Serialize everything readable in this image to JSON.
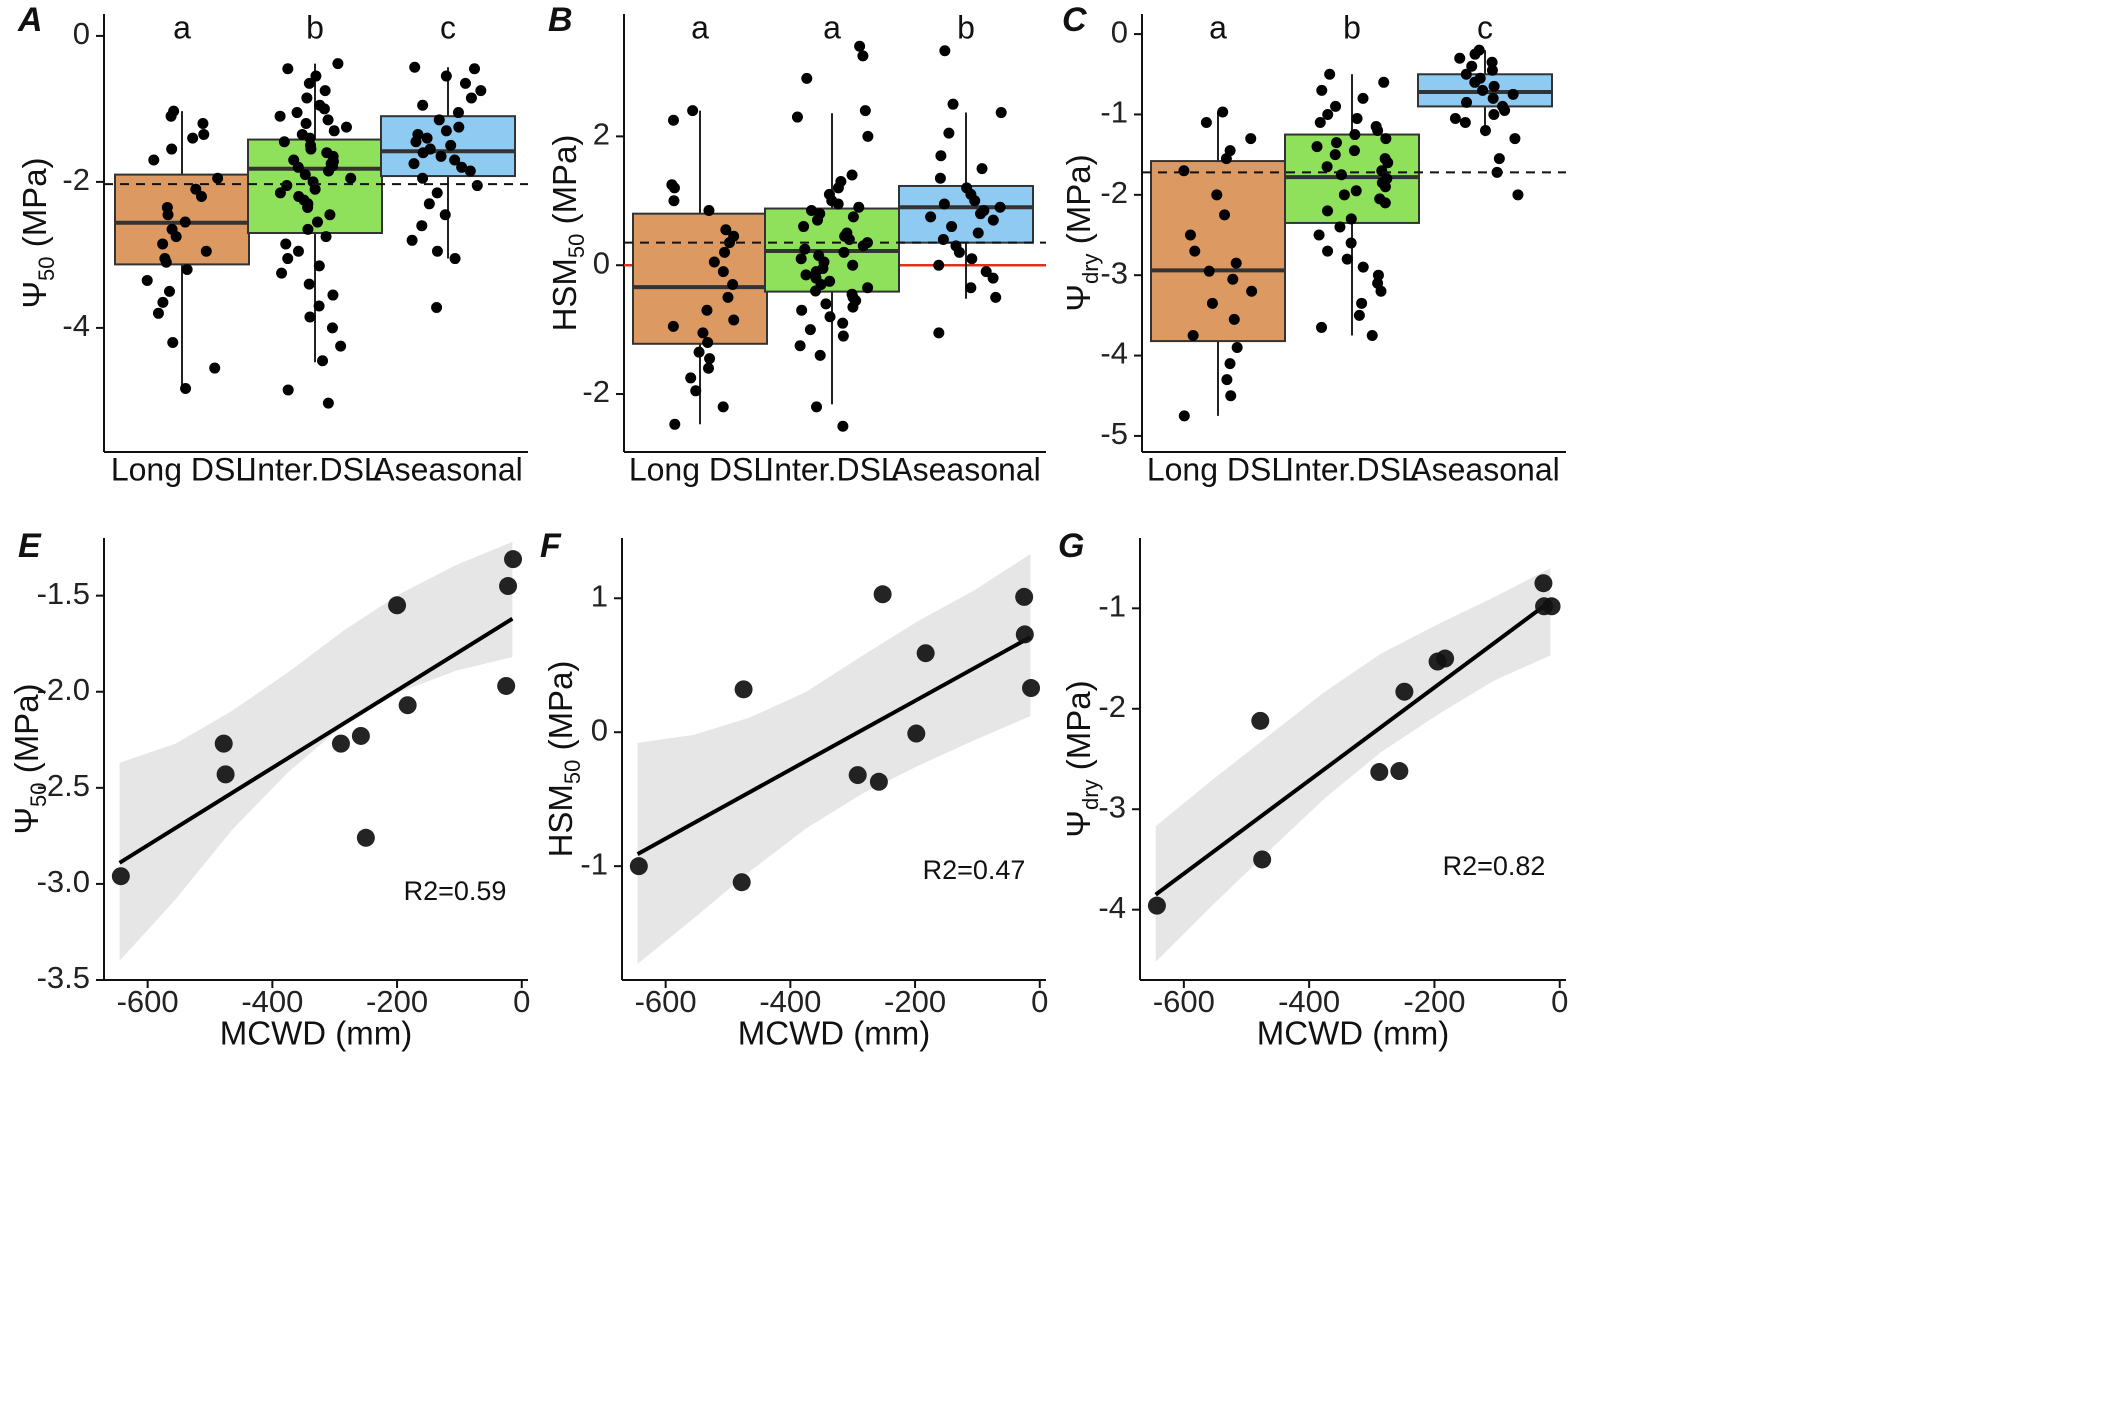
{
  "figure": {
    "categories": [
      "Long DSL",
      "Inter.DSL",
      "Aseasonal"
    ],
    "colors": {
      "Long DSL": "#dc9a62",
      "Inter.DSL": "#8fe05a",
      "Aseasonal": "#8ecaf2",
      "zero_line": "#e0301e",
      "ci_band": "#e6e6e6"
    }
  },
  "chart_data": [
    {
      "panel": "A",
      "type": "box",
      "ylabel_main": "Ψ",
      "ylabel_sub": "50",
      "ylabel_unit": " (MPa)",
      "ylim": [
        -5.7,
        0.3
      ],
      "yticks": [
        0,
        -2,
        -4
      ],
      "ytick_labels": [
        "0",
        "-2",
        "-4"
      ],
      "reference_line": -2.03,
      "zero_line": null,
      "groups": [
        {
          "category": "Long DSL",
          "letter": "a",
          "q1": -3.13,
          "median": -2.56,
          "q3": -1.9,
          "whisker_low": -4.83,
          "whisker_high": -1.03,
          "points": [
            -1.03,
            -1.1,
            -1.2,
            -1.35,
            -1.4,
            -1.55,
            -1.7,
            -1.95,
            -2.1,
            -2.2,
            -2.35,
            -2.45,
            -2.55,
            -2.65,
            -2.75,
            -2.85,
            -2.95,
            -3.05,
            -3.1,
            -3.2,
            -3.35,
            -3.5,
            -3.65,
            -3.8,
            -4.2,
            -4.55,
            -4.83
          ]
        },
        {
          "category": "Inter.DSL",
          "letter": "b",
          "q1": -2.7,
          "median": -1.82,
          "q3": -1.42,
          "whisker_low": -4.47,
          "whisker_high": -0.38,
          "points": [
            -0.38,
            -0.45,
            -0.55,
            -0.65,
            -0.75,
            -0.85,
            -0.95,
            -1.0,
            -1.05,
            -1.1,
            -1.15,
            -1.2,
            -1.25,
            -1.3,
            -1.35,
            -1.4,
            -1.45,
            -1.5,
            -1.55,
            -1.6,
            -1.65,
            -1.7,
            -1.72,
            -1.75,
            -1.78,
            -1.8,
            -1.85,
            -1.9,
            -1.95,
            -2.0,
            -2.05,
            -2.1,
            -2.15,
            -2.2,
            -2.25,
            -2.3,
            -2.35,
            -2.45,
            -2.55,
            -2.65,
            -2.75,
            -2.85,
            -2.95,
            -3.05,
            -3.15,
            -3.25,
            -3.4,
            -3.55,
            -3.7,
            -3.85,
            -4.0,
            -4.25,
            -4.45,
            -4.85,
            -5.03
          ]
        },
        {
          "category": "Aseasonal",
          "letter": "c",
          "q1": -1.92,
          "median": -1.58,
          "q3": -1.1,
          "whisker_low": -3.05,
          "whisker_high": -0.43,
          "points": [
            -0.43,
            -0.45,
            -0.55,
            -0.65,
            -0.75,
            -0.85,
            -0.95,
            -1.05,
            -1.15,
            -1.25,
            -1.3,
            -1.35,
            -1.4,
            -1.45,
            -1.5,
            -1.55,
            -1.6,
            -1.65,
            -1.7,
            -1.75,
            -1.8,
            -1.85,
            -1.95,
            -2.05,
            -2.15,
            -2.3,
            -2.45,
            -2.6,
            -2.8,
            -2.95,
            -3.05,
            -3.72
          ]
        }
      ]
    },
    {
      "panel": "B",
      "type": "box",
      "ylabel_main": "HSM",
      "ylabel_sub": "50",
      "ylabel_unit": " (MPa)",
      "ylim": [
        -2.9,
        3.9
      ],
      "yticks": [
        2,
        0,
        -2
      ],
      "ytick_labels": [
        "2",
        "0",
        "-2"
      ],
      "reference_line": 0.35,
      "zero_line": 0,
      "groups": [
        {
          "category": "Long DSL",
          "letter": "a",
          "q1": -1.22,
          "median": -0.34,
          "q3": 0.8,
          "whisker_low": -2.47,
          "whisker_high": 2.4,
          "points": [
            2.4,
            2.25,
            1.25,
            1.2,
            1.0,
            0.85,
            0.55,
            0.45,
            0.35,
            0.2,
            0.05,
            -0.1,
            -0.3,
            -0.5,
            -0.7,
            -0.85,
            -0.95,
            -1.05,
            -1.2,
            -1.35,
            -1.45,
            -1.6,
            -1.75,
            -1.95,
            -2.2,
            -2.47
          ]
        },
        {
          "category": "Inter.DSL",
          "letter": "a",
          "q1": -0.41,
          "median": 0.22,
          "q3": 0.88,
          "whisker_low": -2.16,
          "whisker_high": 2.36,
          "points": [
            3.4,
            3.25,
            2.9,
            2.4,
            2.3,
            2.0,
            1.4,
            1.3,
            1.2,
            1.1,
            1.0,
            0.95,
            0.9,
            0.85,
            0.8,
            0.75,
            0.7,
            0.6,
            0.5,
            0.45,
            0.4,
            0.35,
            0.3,
            0.25,
            0.2,
            0.15,
            0.1,
            0.05,
            0.0,
            -0.05,
            -0.1,
            -0.15,
            -0.2,
            -0.25,
            -0.3,
            -0.35,
            -0.4,
            -0.45,
            -0.5,
            -0.55,
            -0.6,
            -0.65,
            -0.7,
            -0.8,
            -0.9,
            -1.0,
            -1.1,
            -1.25,
            -1.4,
            -2.2,
            -2.5
          ]
        },
        {
          "category": "Aseasonal",
          "letter": "b",
          "q1": 0.35,
          "median": 0.9,
          "q3": 1.23,
          "whisker_low": -0.52,
          "whisker_high": 2.37,
          "points": [
            3.33,
            2.5,
            2.37,
            2.05,
            1.7,
            1.5,
            1.35,
            1.2,
            1.1,
            1.0,
            0.95,
            0.9,
            0.85,
            0.8,
            0.75,
            0.7,
            0.6,
            0.5,
            0.4,
            0.3,
            0.2,
            0.1,
            0.0,
            -0.1,
            -0.2,
            -0.35,
            -0.5,
            -1.05
          ]
        }
      ]
    },
    {
      "panel": "C",
      "type": "box",
      "ylabel_main": "Ψ",
      "ylabel_sub": "dry",
      "ylabel_unit": " (MPa)",
      "ylim": [
        -5.2,
        0.25
      ],
      "yticks": [
        0,
        -1,
        -2,
        -3,
        -4,
        -5
      ],
      "ytick_labels": [
        "0",
        "-1",
        "-2",
        "-3",
        "-4",
        "-5"
      ],
      "reference_line": -1.72,
      "zero_line": null,
      "groups": [
        {
          "category": "Long DSL",
          "letter": "a",
          "q1": -3.82,
          "median": -2.94,
          "q3": -1.58,
          "whisker_low": -4.75,
          "whisker_high": -0.97,
          "points": [
            -0.97,
            -1.1,
            -1.3,
            -1.45,
            -1.55,
            -1.7,
            -2.0,
            -2.25,
            -2.5,
            -2.7,
            -2.85,
            -2.95,
            -3.05,
            -3.2,
            -3.35,
            -3.55,
            -3.75,
            -3.9,
            -4.1,
            -4.3,
            -4.5,
            -4.75
          ]
        },
        {
          "category": "Inter.DSL",
          "letter": "b",
          "q1": -2.35,
          "median": -1.78,
          "q3": -1.25,
          "whisker_low": -3.75,
          "whisker_high": -0.5,
          "points": [
            -0.5,
            -0.6,
            -0.7,
            -0.8,
            -0.9,
            -1.0,
            -1.05,
            -1.1,
            -1.15,
            -1.2,
            -1.25,
            -1.3,
            -1.35,
            -1.4,
            -1.45,
            -1.5,
            -1.55,
            -1.6,
            -1.65,
            -1.7,
            -1.75,
            -1.8,
            -1.85,
            -1.9,
            -1.95,
            -2.0,
            -2.05,
            -2.1,
            -2.2,
            -2.3,
            -2.4,
            -2.5,
            -2.6,
            -2.7,
            -2.8,
            -2.9,
            -3.0,
            -3.1,
            -3.2,
            -3.35,
            -3.5,
            -3.65,
            -3.75
          ]
        },
        {
          "category": "Aseasonal",
          "letter": "c",
          "q1": -0.9,
          "median": -0.72,
          "q3": -0.5,
          "whisker_low": -1.27,
          "whisker_high": -0.2,
          "points": [
            -0.2,
            -0.25,
            -0.3,
            -0.35,
            -0.4,
            -0.45,
            -0.5,
            -0.55,
            -0.6,
            -0.65,
            -0.7,
            -0.75,
            -0.8,
            -0.85,
            -0.9,
            -0.95,
            -1.0,
            -1.05,
            -1.1,
            -1.2,
            -1.3,
            -1.55,
            -1.72,
            -2.0
          ]
        }
      ]
    },
    {
      "panel": "E",
      "type": "scatter",
      "xlabel": "MCWD  (mm)",
      "ylabel_main": "Ψ",
      "ylabel_sub": "50",
      "ylabel_unit": " (MPa)",
      "xlim": [
        -670,
        10
      ],
      "xticks": [
        -600,
        -400,
        -200,
        0
      ],
      "xtick_labels": [
        "-600",
        "-400",
        "-200",
        "0"
      ],
      "ylim": [
        -3.5,
        -1.2
      ],
      "yticks": [
        -1.5,
        -2.0,
        -2.5,
        -3.0,
        -3.5
      ],
      "ytick_labels": [
        "-1.5",
        "-2.0",
        "-2.5",
        "-3.0",
        "-3.5"
      ],
      "points": {
        "x": [
          -643,
          -478,
          -475,
          -290,
          -258,
          -250,
          -200,
          -183,
          -25,
          -22,
          -14
        ],
        "y": [
          -2.96,
          -2.27,
          -2.43,
          -2.27,
          -2.23,
          -2.76,
          -1.55,
          -2.07,
          -1.97,
          -1.45,
          -1.31
        ]
      },
      "fit": {
        "x": [
          -645,
          -15
        ],
        "y": [
          -2.89,
          -1.62
        ]
      },
      "ci_upper": [
        -2.37,
        -2.27,
        -2.1,
        -1.9,
        -1.68,
        -1.49,
        -1.34,
        -1.22
      ],
      "ci_lower": [
        -3.4,
        -3.08,
        -2.72,
        -2.42,
        -2.17,
        -2.0,
        -1.89,
        -1.82
      ],
      "ci_x": [
        -645,
        -555,
        -465,
        -375,
        -285,
        -195,
        -105,
        -15
      ],
      "r2": "R2=0.59"
    },
    {
      "panel": "F",
      "type": "scatter",
      "xlabel": "MCWD  (mm)",
      "ylabel_main": "HSM",
      "ylabel_sub": "50",
      "ylabel_unit": " (MPa)",
      "xlim": [
        -670,
        10
      ],
      "xticks": [
        -600,
        -400,
        -200,
        0
      ],
      "xtick_labels": [
        "-600",
        "-400",
        "-200",
        "0"
      ],
      "ylim": [
        -1.85,
        1.45
      ],
      "yticks": [
        1,
        0,
        -1
      ],
      "ytick_labels": [
        "1",
        "0",
        "-1"
      ],
      "points": {
        "x": [
          -643,
          -478,
          -475,
          -292,
          -258,
          -252,
          -198,
          -183,
          -25,
          -24,
          -14
        ],
        "y": [
          -1.0,
          -1.12,
          0.32,
          -0.32,
          -0.37,
          1.03,
          -0.01,
          0.59,
          1.01,
          0.73,
          0.33
        ]
      },
      "fit": {
        "x": [
          -645,
          -15
        ],
        "y": [
          -0.91,
          0.71
        ]
      },
      "ci_upper": [
        -0.08,
        -0.02,
        0.11,
        0.3,
        0.57,
        0.83,
        1.06,
        1.33
      ],
      "ci_lower": [
        -1.73,
        -1.39,
        -1.04,
        -0.72,
        -0.46,
        -0.25,
        -0.06,
        0.12
      ],
      "ci_x": [
        -645,
        -555,
        -465,
        -375,
        -285,
        -195,
        -105,
        -15
      ],
      "r2": "R2=0.47"
    },
    {
      "panel": "G",
      "type": "scatter",
      "xlabel": "MCWD  (mm)",
      "ylabel_main": "Ψ",
      "ylabel_sub": "dry",
      "ylabel_unit": " (MPa)",
      "xlim": [
        -670,
        10
      ],
      "xticks": [
        -600,
        -400,
        -200,
        0
      ],
      "xtick_labels": [
        "-600",
        "-400",
        "-200",
        "0"
      ],
      "ylim": [
        -4.7,
        -0.3
      ],
      "yticks": [
        -1,
        -2,
        -3,
        -4
      ],
      "ytick_labels": [
        "-1",
        "-2",
        "-3",
        "-4"
      ],
      "points": {
        "x": [
          -643,
          -478,
          -475,
          -288,
          -256,
          -248,
          -195,
          -183,
          -26,
          -25,
          -13
        ],
        "y": [
          -3.96,
          -2.12,
          -3.5,
          -2.63,
          -2.62,
          -1.83,
          -1.53,
          -1.5,
          -0.75,
          -0.98,
          -0.98
        ]
      },
      "fit": {
        "x": [
          -645,
          -15
        ],
        "y": [
          -3.85,
          -0.93
        ]
      },
      "ci_upper": [
        -3.17,
        -2.71,
        -2.27,
        -1.83,
        -1.45,
        -1.16,
        -0.89,
        -0.6
      ],
      "ci_lower": [
        -4.52,
        -3.96,
        -3.42,
        -2.89,
        -2.43,
        -2.06,
        -1.72,
        -1.47
      ],
      "ci_x": [
        -645,
        -555,
        -465,
        -375,
        -285,
        -195,
        -105,
        -15
      ],
      "r2": "R2=0.82"
    }
  ]
}
